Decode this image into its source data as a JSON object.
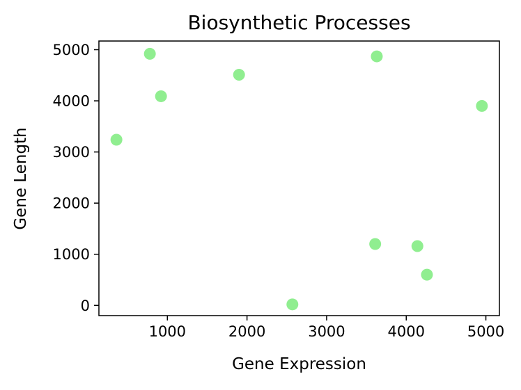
{
  "chart_data": {
    "type": "scatter",
    "title": "Biosynthetic Processes",
    "xlabel": "Gene Expression",
    "ylabel": "Gene Length",
    "xlim": [
      140,
      5170
    ],
    "ylim": [
      -200,
      5170
    ],
    "xticks": [
      1000,
      2000,
      3000,
      4000,
      5000
    ],
    "yticks": [
      0,
      1000,
      2000,
      3000,
      4000,
      5000
    ],
    "grid": false,
    "marker_color": "#90ee90",
    "points": [
      {
        "x": 360,
        "y": 3240
      },
      {
        "x": 780,
        "y": 4920
      },
      {
        "x": 920,
        "y": 4090
      },
      {
        "x": 1900,
        "y": 4510
      },
      {
        "x": 2570,
        "y": 20
      },
      {
        "x": 3610,
        "y": 1200
      },
      {
        "x": 3630,
        "y": 4870
      },
      {
        "x": 4140,
        "y": 1160
      },
      {
        "x": 4260,
        "y": 600
      },
      {
        "x": 4950,
        "y": 3900
      }
    ]
  }
}
